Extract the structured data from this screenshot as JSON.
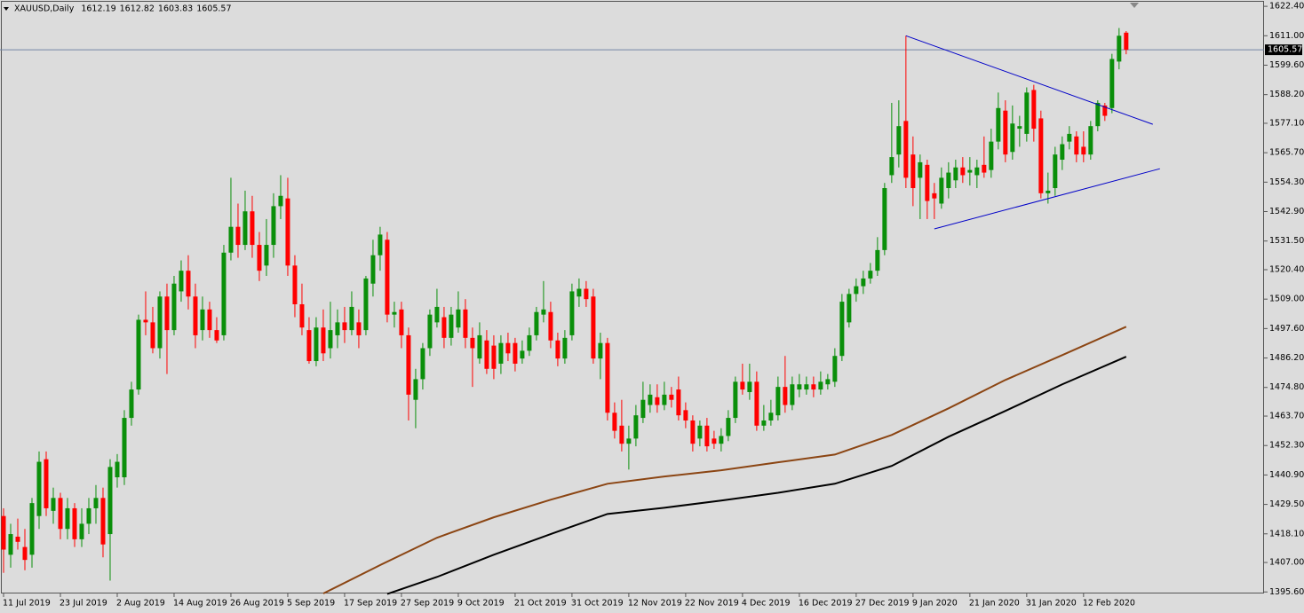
{
  "chart_data": {
    "type": "candlestick",
    "symbol_period": "XAUUSD,Daily",
    "bull_color": "#0a8f0a",
    "bear_color": "#ff0000",
    "candles": [
      [
        1425,
        1428,
        1403,
        1412
      ],
      [
        1410,
        1422,
        1405,
        1418
      ],
      [
        1417,
        1424,
        1412,
        1415
      ],
      [
        1413,
        1420,
        1404,
        1408
      ],
      [
        1410,
        1432,
        1405,
        1430
      ],
      [
        1425,
        1450,
        1420,
        1446
      ],
      [
        1447,
        1450,
        1425,
        1428
      ],
      [
        1427,
        1436,
        1422,
        1432
      ],
      [
        1432,
        1434,
        1416,
        1420
      ],
      [
        1420,
        1432,
        1416,
        1428
      ],
      [
        1428,
        1430,
        1413,
        1416
      ],
      [
        1416,
        1428,
        1413,
        1422
      ],
      [
        1422,
        1432,
        1418,
        1428
      ],
      [
        1428,
        1437,
        1422,
        1432
      ],
      [
        1432,
        1436,
        1409,
        1414
      ],
      [
        1418,
        1447,
        1400,
        1444
      ],
      [
        1440,
        1449,
        1436,
        1446
      ],
      [
        1440,
        1466,
        1437,
        1463
      ],
      [
        1463,
        1477,
        1460,
        1474
      ],
      [
        1474,
        1503,
        1472,
        1501
      ],
      [
        1501,
        1512,
        1495,
        1500
      ],
      [
        1500,
        1506,
        1488,
        1490
      ],
      [
        1490,
        1512,
        1486,
        1510
      ],
      [
        1510,
        1515,
        1480,
        1497
      ],
      [
        1497,
        1518,
        1495,
        1515
      ],
      [
        1512,
        1524,
        1508,
        1520
      ],
      [
        1520,
        1526,
        1505,
        1510
      ],
      [
        1510,
        1515,
        1490,
        1495
      ],
      [
        1497,
        1510,
        1493,
        1505
      ],
      [
        1505,
        1508,
        1494,
        1497
      ],
      [
        1497,
        1502,
        1492,
        1493
      ],
      [
        1495,
        1530,
        1493,
        1527
      ],
      [
        1527,
        1556,
        1524,
        1537
      ],
      [
        1537,
        1546,
        1525,
        1530
      ],
      [
        1530,
        1551,
        1528,
        1543
      ],
      [
        1543,
        1549,
        1525,
        1530
      ],
      [
        1530,
        1535,
        1516,
        1520
      ],
      [
        1522,
        1540,
        1518,
        1530
      ],
      [
        1530,
        1550,
        1525,
        1545
      ],
      [
        1545,
        1557,
        1540,
        1549
      ],
      [
        1548,
        1556,
        1518,
        1522
      ],
      [
        1522,
        1526,
        1502,
        1507
      ],
      [
        1507,
        1515,
        1495,
        1498
      ],
      [
        1497,
        1502,
        1484,
        1485
      ],
      [
        1485,
        1502,
        1483,
        1498
      ],
      [
        1498,
        1505,
        1485,
        1488
      ],
      [
        1490,
        1508,
        1486,
        1497
      ],
      [
        1495,
        1505,
        1490,
        1500
      ],
      [
        1500,
        1506,
        1492,
        1497
      ],
      [
        1497,
        1512,
        1495,
        1506
      ],
      [
        1500,
        1505,
        1490,
        1495
      ],
      [
        1497,
        1518,
        1495,
        1517
      ],
      [
        1515,
        1532,
        1510,
        1526
      ],
      [
        1526,
        1537,
        1520,
        1534
      ],
      [
        1532,
        1535,
        1500,
        1503
      ],
      [
        1503,
        1508,
        1498,
        1504
      ],
      [
        1505,
        1508,
        1490,
        1495
      ],
      [
        1495,
        1498,
        1462,
        1472
      ],
      [
        1470,
        1482,
        1459,
        1478
      ],
      [
        1478,
        1492,
        1474,
        1490
      ],
      [
        1490,
        1505,
        1487,
        1503
      ],
      [
        1500,
        1513,
        1498,
        1506
      ],
      [
        1502,
        1506,
        1490,
        1494
      ],
      [
        1494,
        1506,
        1491,
        1503
      ],
      [
        1498,
        1512,
        1496,
        1505
      ],
      [
        1505,
        1509,
        1490,
        1494
      ],
      [
        1494,
        1498,
        1475,
        1490
      ],
      [
        1486,
        1500,
        1484,
        1495
      ],
      [
        1493,
        1497,
        1480,
        1482
      ],
      [
        1491,
        1495,
        1478,
        1482
      ],
      [
        1484,
        1495,
        1480,
        1492
      ],
      [
        1492,
        1496,
        1485,
        1488
      ],
      [
        1492,
        1494,
        1481,
        1484
      ],
      [
        1486,
        1493,
        1484,
        1489
      ],
      [
        1489,
        1498,
        1487,
        1495
      ],
      [
        1495,
        1506,
        1493,
        1504
      ],
      [
        1503,
        1516,
        1500,
        1505
      ],
      [
        1504,
        1508,
        1490,
        1493
      ],
      [
        1493,
        1496,
        1483,
        1486
      ],
      [
        1486,
        1497,
        1484,
        1494
      ],
      [
        1495,
        1515,
        1493,
        1512
      ],
      [
        1510,
        1517,
        1506,
        1513
      ],
      [
        1513,
        1516,
        1506,
        1509
      ],
      [
        1510,
        1513,
        1484,
        1486
      ],
      [
        1486,
        1496,
        1478,
        1492
      ],
      [
        1492,
        1494,
        1462,
        1465
      ],
      [
        1465,
        1469,
        1455,
        1458
      ],
      [
        1460,
        1470,
        1450,
        1453
      ],
      [
        1453,
        1460,
        1443,
        1455
      ],
      [
        1455,
        1468,
        1452,
        1464
      ],
      [
        1463,
        1477,
        1461,
        1470
      ],
      [
        1468,
        1476,
        1465,
        1472
      ],
      [
        1471,
        1476,
        1465,
        1468
      ],
      [
        1468,
        1477,
        1466,
        1472
      ],
      [
        1472,
        1475,
        1467,
        1470
      ],
      [
        1474,
        1479,
        1462,
        1464
      ],
      [
        1466,
        1469,
        1459,
        1462
      ],
      [
        1462,
        1464,
        1450,
        1453
      ],
      [
        1455,
        1462,
        1452,
        1460
      ],
      [
        1460,
        1463,
        1450,
        1452
      ],
      [
        1455,
        1458,
        1451,
        1453
      ],
      [
        1453,
        1459,
        1450,
        1456
      ],
      [
        1456,
        1466,
        1454,
        1463
      ],
      [
        1463,
        1479,
        1461,
        1477
      ],
      [
        1477,
        1484,
        1472,
        1474
      ],
      [
        1473,
        1484,
        1470,
        1477
      ],
      [
        1477,
        1481,
        1458,
        1460
      ],
      [
        1460,
        1468,
        1458,
        1462
      ],
      [
        1462,
        1470,
        1460,
        1465
      ],
      [
        1464,
        1479,
        1462,
        1475
      ],
      [
        1475,
        1487,
        1465,
        1468
      ],
      [
        1468,
        1479,
        1466,
        1476
      ],
      [
        1474,
        1480,
        1471,
        1476
      ],
      [
        1474,
        1479,
        1472,
        1476
      ],
      [
        1476,
        1479,
        1471,
        1474
      ],
      [
        1474,
        1481,
        1472,
        1477
      ],
      [
        1476,
        1480,
        1474,
        1478
      ],
      [
        1477,
        1490,
        1475,
        1487
      ],
      [
        1487,
        1511,
        1485,
        1508
      ],
      [
        1500,
        1513,
        1498,
        1511
      ],
      [
        1511,
        1517,
        1508,
        1514
      ],
      [
        1514,
        1520,
        1511,
        1517
      ],
      [
        1517,
        1523,
        1515,
        1520
      ],
      [
        1520,
        1533,
        1518,
        1528
      ],
      [
        1528,
        1554,
        1526,
        1552
      ],
      [
        1557,
        1585,
        1554,
        1564
      ],
      [
        1565,
        1586,
        1560,
        1576
      ],
      [
        1578,
        1611,
        1552,
        1556
      ],
      [
        1565,
        1572,
        1545,
        1552
      ],
      [
        1556,
        1565,
        1540,
        1562
      ],
      [
        1561,
        1563,
        1540,
        1547
      ],
      [
        1550,
        1554,
        1540,
        1548
      ],
      [
        1546,
        1560,
        1544,
        1556
      ],
      [
        1552,
        1562,
        1548,
        1558
      ],
      [
        1555,
        1563,
        1552,
        1560
      ],
      [
        1560,
        1564,
        1554,
        1557
      ],
      [
        1558,
        1564,
        1553,
        1559
      ],
      [
        1557,
        1563,
        1552,
        1560
      ],
      [
        1561,
        1572,
        1556,
        1558
      ],
      [
        1559,
        1575,
        1556,
        1570
      ],
      [
        1570,
        1589,
        1567,
        1583
      ],
      [
        1582,
        1586,
        1562,
        1565
      ],
      [
        1566,
        1584,
        1563,
        1577
      ],
      [
        1575,
        1580,
        1568,
        1576
      ],
      [
        1573,
        1591,
        1570,
        1589
      ],
      [
        1590,
        1592,
        1570,
        1575
      ],
      [
        1579,
        1582,
        1548,
        1550
      ],
      [
        1550,
        1558,
        1546,
        1551
      ],
      [
        1552,
        1568,
        1549,
        1565
      ],
      [
        1563,
        1572,
        1559,
        1569
      ],
      [
        1570,
        1576,
        1567,
        1573
      ],
      [
        1572,
        1574,
        1562,
        1565
      ],
      [
        1568,
        1574,
        1562,
        1565
      ],
      [
        1565,
        1578,
        1563,
        1576
      ],
      [
        1576,
        1586,
        1574,
        1585
      ],
      [
        1584,
        1585,
        1578,
        1580
      ],
      [
        1583,
        1604,
        1581,
        1602
      ],
      [
        1601,
        1614,
        1598,
        1611
      ],
      [
        1612.19,
        1612.82,
        1603.83,
        1605.57
      ]
    ],
    "moving_averages": [
      {
        "color": "#8b4513",
        "x": [
          45,
          53,
          61,
          69,
          77,
          85,
          93,
          101,
          109,
          117,
          125,
          133,
          141,
          149,
          158
        ],
        "values": [
          1395,
          1406,
          1416.6,
          1424.5,
          1431.3,
          1437.5,
          1440.3,
          1442.7,
          1445.8,
          1448.8,
          1456.4,
          1466.7,
          1477.7,
          1487.3,
          1498.3
        ]
      },
      {
        "color": "#000000",
        "x": [
          54,
          61,
          69,
          77,
          85,
          93,
          101,
          109,
          117,
          125,
          133,
          141,
          149,
          158
        ],
        "values": [
          1394.8,
          1401.4,
          1410,
          1418,
          1425.8,
          1428.2,
          1431,
          1434,
          1437.5,
          1444.4,
          1455.7,
          1465.7,
          1476,
          1486.7
        ]
      }
    ],
    "trendlines": [
      {
        "color": "#0000c8",
        "x": [
          127,
          161.75
        ],
        "values": [
          1611,
          1576.7
        ]
      },
      {
        "color": "#0000c8",
        "x": [
          131,
          162.75
        ],
        "values": [
          1536.2,
          1559.5
        ]
      }
    ],
    "xlim": [
      -0.5,
      177.4
    ],
    "ylim": [
      1395,
      1624.5
    ],
    "yticks": [
      {
        "value": 1395.6,
        "label": "1395.60"
      },
      {
        "value": 1407,
        "label": "1407.00"
      },
      {
        "value": 1418.1,
        "label": "1418.10"
      },
      {
        "value": 1429.5,
        "label": "1429.50"
      },
      {
        "value": 1440.9,
        "label": "1440.90"
      },
      {
        "value": 1452.3,
        "label": "1452.30"
      },
      {
        "value": 1463.7,
        "label": "1463.70"
      },
      {
        "value": 1474.8,
        "label": "1474.80"
      },
      {
        "value": 1486.2,
        "label": "1486.20"
      },
      {
        "value": 1497.6,
        "label": "1497.60"
      },
      {
        "value": 1509,
        "label": "1509.00"
      },
      {
        "value": 1520.4,
        "label": "1520.40"
      },
      {
        "value": 1531.5,
        "label": "1531.50"
      },
      {
        "value": 1542.9,
        "label": "1542.90"
      },
      {
        "value": 1554.3,
        "label": "1554.30"
      },
      {
        "value": 1565.7,
        "label": "1565.70"
      },
      {
        "value": 1577.1,
        "label": "1577.10"
      },
      {
        "value": 1588.2,
        "label": "1588.20"
      },
      {
        "value": 1599.6,
        "label": "1599.60"
      },
      {
        "value": 1611,
        "label": "1611.00"
      },
      {
        "value": 1622.4,
        "label": "1622.40"
      }
    ],
    "xticks": [
      {
        "value": 0,
        "label": "11 Jul 2019"
      },
      {
        "value": 8,
        "label": "23 Jul 2019"
      },
      {
        "value": 16,
        "label": "2 Aug 2019"
      },
      {
        "value": 24,
        "label": "14 Aug 2019"
      },
      {
        "value": 32,
        "label": "26 Aug 2019"
      },
      {
        "value": 40,
        "label": "5 Sep 2019"
      },
      {
        "value": 48,
        "label": "17 Sep 2019"
      },
      {
        "value": 56,
        "label": "27 Sep 2019"
      },
      {
        "value": 64,
        "label": "9 Oct 2019"
      },
      {
        "value": 72,
        "label": "21 Oct 2019"
      },
      {
        "value": 80,
        "label": "31 Oct 2019"
      },
      {
        "value": 88,
        "label": "12 Nov 2019"
      },
      {
        "value": 96,
        "label": "22 Nov 2019"
      },
      {
        "value": 104,
        "label": "4 Dec 2019"
      },
      {
        "value": 112,
        "label": "16 Dec 2019"
      },
      {
        "value": 120,
        "label": "27 Dec 2019"
      },
      {
        "value": 128,
        "label": "9 Jan 2020"
      },
      {
        "value": 136,
        "label": "21 Jan 2020"
      },
      {
        "value": 144,
        "label": "31 Jan 2020"
      },
      {
        "value": 152,
        "label": "12 Feb 2020"
      }
    ],
    "price_line_color": "#7486a6"
  }
}
